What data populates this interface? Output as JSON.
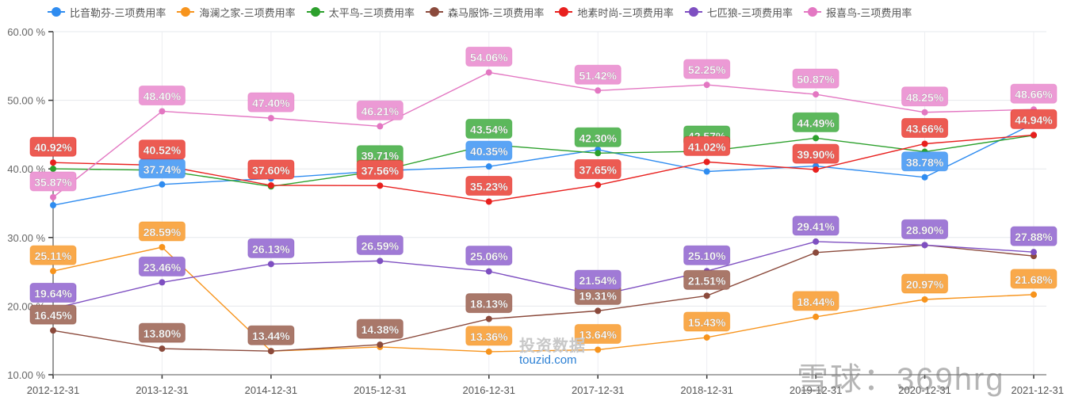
{
  "chart_data": {
    "type": "line",
    "title": "",
    "xlabel": "",
    "ylabel": "",
    "ylim": [
      10,
      60
    ],
    "y_ticks": [
      "10.00 %",
      "20.00 %",
      "30.00 %",
      "40.00 %",
      "50.00 %",
      "60.00 %"
    ],
    "y_tick_values": [
      10,
      20,
      30,
      40,
      50,
      60
    ],
    "grid": true,
    "legend_position": "top",
    "categories": [
      "2012-12-31",
      "2013-12-31",
      "2014-12-31",
      "2015-12-31",
      "2016-12-31",
      "2017-12-31",
      "2018-12-31",
      "2019-12-31",
      "2020-12-31",
      "2021-12-31"
    ],
    "series": [
      {
        "name": "比音勒芬-三项费用率",
        "color": "#2f8cf0",
        "label_bg": "#5aa4f5",
        "values": [
          34.71,
          37.74,
          38.61,
          39.71,
          40.35,
          42.8,
          39.62,
          40.42,
          38.78,
          46.6
        ],
        "labels": [
          "",
          "37.74%",
          "",
          "",
          "40.35%",
          "",
          "",
          "",
          "38.78%",
          ""
        ]
      },
      {
        "name": "海澜之家-三项费用率",
        "color": "#f7941d",
        "label_bg": "#f9a94b",
        "values": [
          25.11,
          28.59,
          13.44,
          14.05,
          13.36,
          13.64,
          15.43,
          18.44,
          20.97,
          21.68
        ],
        "labels": [
          "25.11%",
          "28.59%",
          "",
          "",
          "13.36%",
          "13.64%",
          "15.43%",
          "18.44%",
          "20.97%",
          "21.68%"
        ]
      },
      {
        "name": "太平鸟-三项费用率",
        "color": "#2ca02c",
        "label_bg": "#5cb85c",
        "values": [
          40.02,
          39.8,
          37.45,
          39.71,
          43.54,
          42.3,
          42.57,
          44.49,
          42.5,
          44.9
        ],
        "labels": [
          "",
          "",
          "",
          "39.71%",
          "43.54%",
          "42.30%",
          "42.57%",
          "44.49%",
          "",
          ""
        ]
      },
      {
        "name": "森马服饰-三项费用率",
        "color": "#8b4a3c",
        "label_bg": "#a9786a",
        "values": [
          16.45,
          13.8,
          13.44,
          14.38,
          18.13,
          19.31,
          21.51,
          27.8,
          28.9,
          27.3
        ],
        "labels": [
          "16.45%",
          "13.80%",
          "13.44%",
          "14.38%",
          "18.13%",
          "19.31%",
          "21.51%",
          "",
          "",
          ""
        ]
      },
      {
        "name": "地素时尚-三项费用率",
        "color": "#e8201e",
        "label_bg": "#ec5b52",
        "values": [
          40.92,
          40.52,
          37.6,
          37.56,
          35.23,
          37.65,
          41.02,
          39.9,
          43.66,
          44.94
        ],
        "labels": [
          "40.92%",
          "40.52%",
          "37.60%",
          "37.56%",
          "35.23%",
          "37.65%",
          "41.02%",
          "39.90%",
          "43.66%",
          "44.94%"
        ]
      },
      {
        "name": "七匹狼-三项费用率",
        "color": "#7e4fc1",
        "label_bg": "#a07ad6",
        "values": [
          19.64,
          23.46,
          26.13,
          26.59,
          25.06,
          21.54,
          25.1,
          29.41,
          28.9,
          27.88
        ],
        "labels": [
          "19.64%",
          "23.46%",
          "26.13%",
          "26.59%",
          "25.06%",
          "21.54%",
          "25.10%",
          "29.41%",
          "28.90%",
          "27.88%"
        ]
      },
      {
        "name": "报喜鸟-三项费用率",
        "color": "#e377c2",
        "label_bg": "#ec9ad5",
        "values": [
          35.87,
          48.4,
          47.4,
          46.21,
          54.06,
          51.42,
          52.25,
          50.87,
          48.25,
          48.66
        ],
        "labels": [
          "35.87%",
          "48.40%",
          "47.40%",
          "46.21%",
          "54.06%",
          "51.42%",
          "52.25%",
          "50.87%",
          "48.25%",
          "48.66%"
        ]
      }
    ]
  },
  "watermarks": {
    "site_cn": "投资数据",
    "site_url": "touzid.com",
    "xueqiu": "雪球：369hrg"
  }
}
